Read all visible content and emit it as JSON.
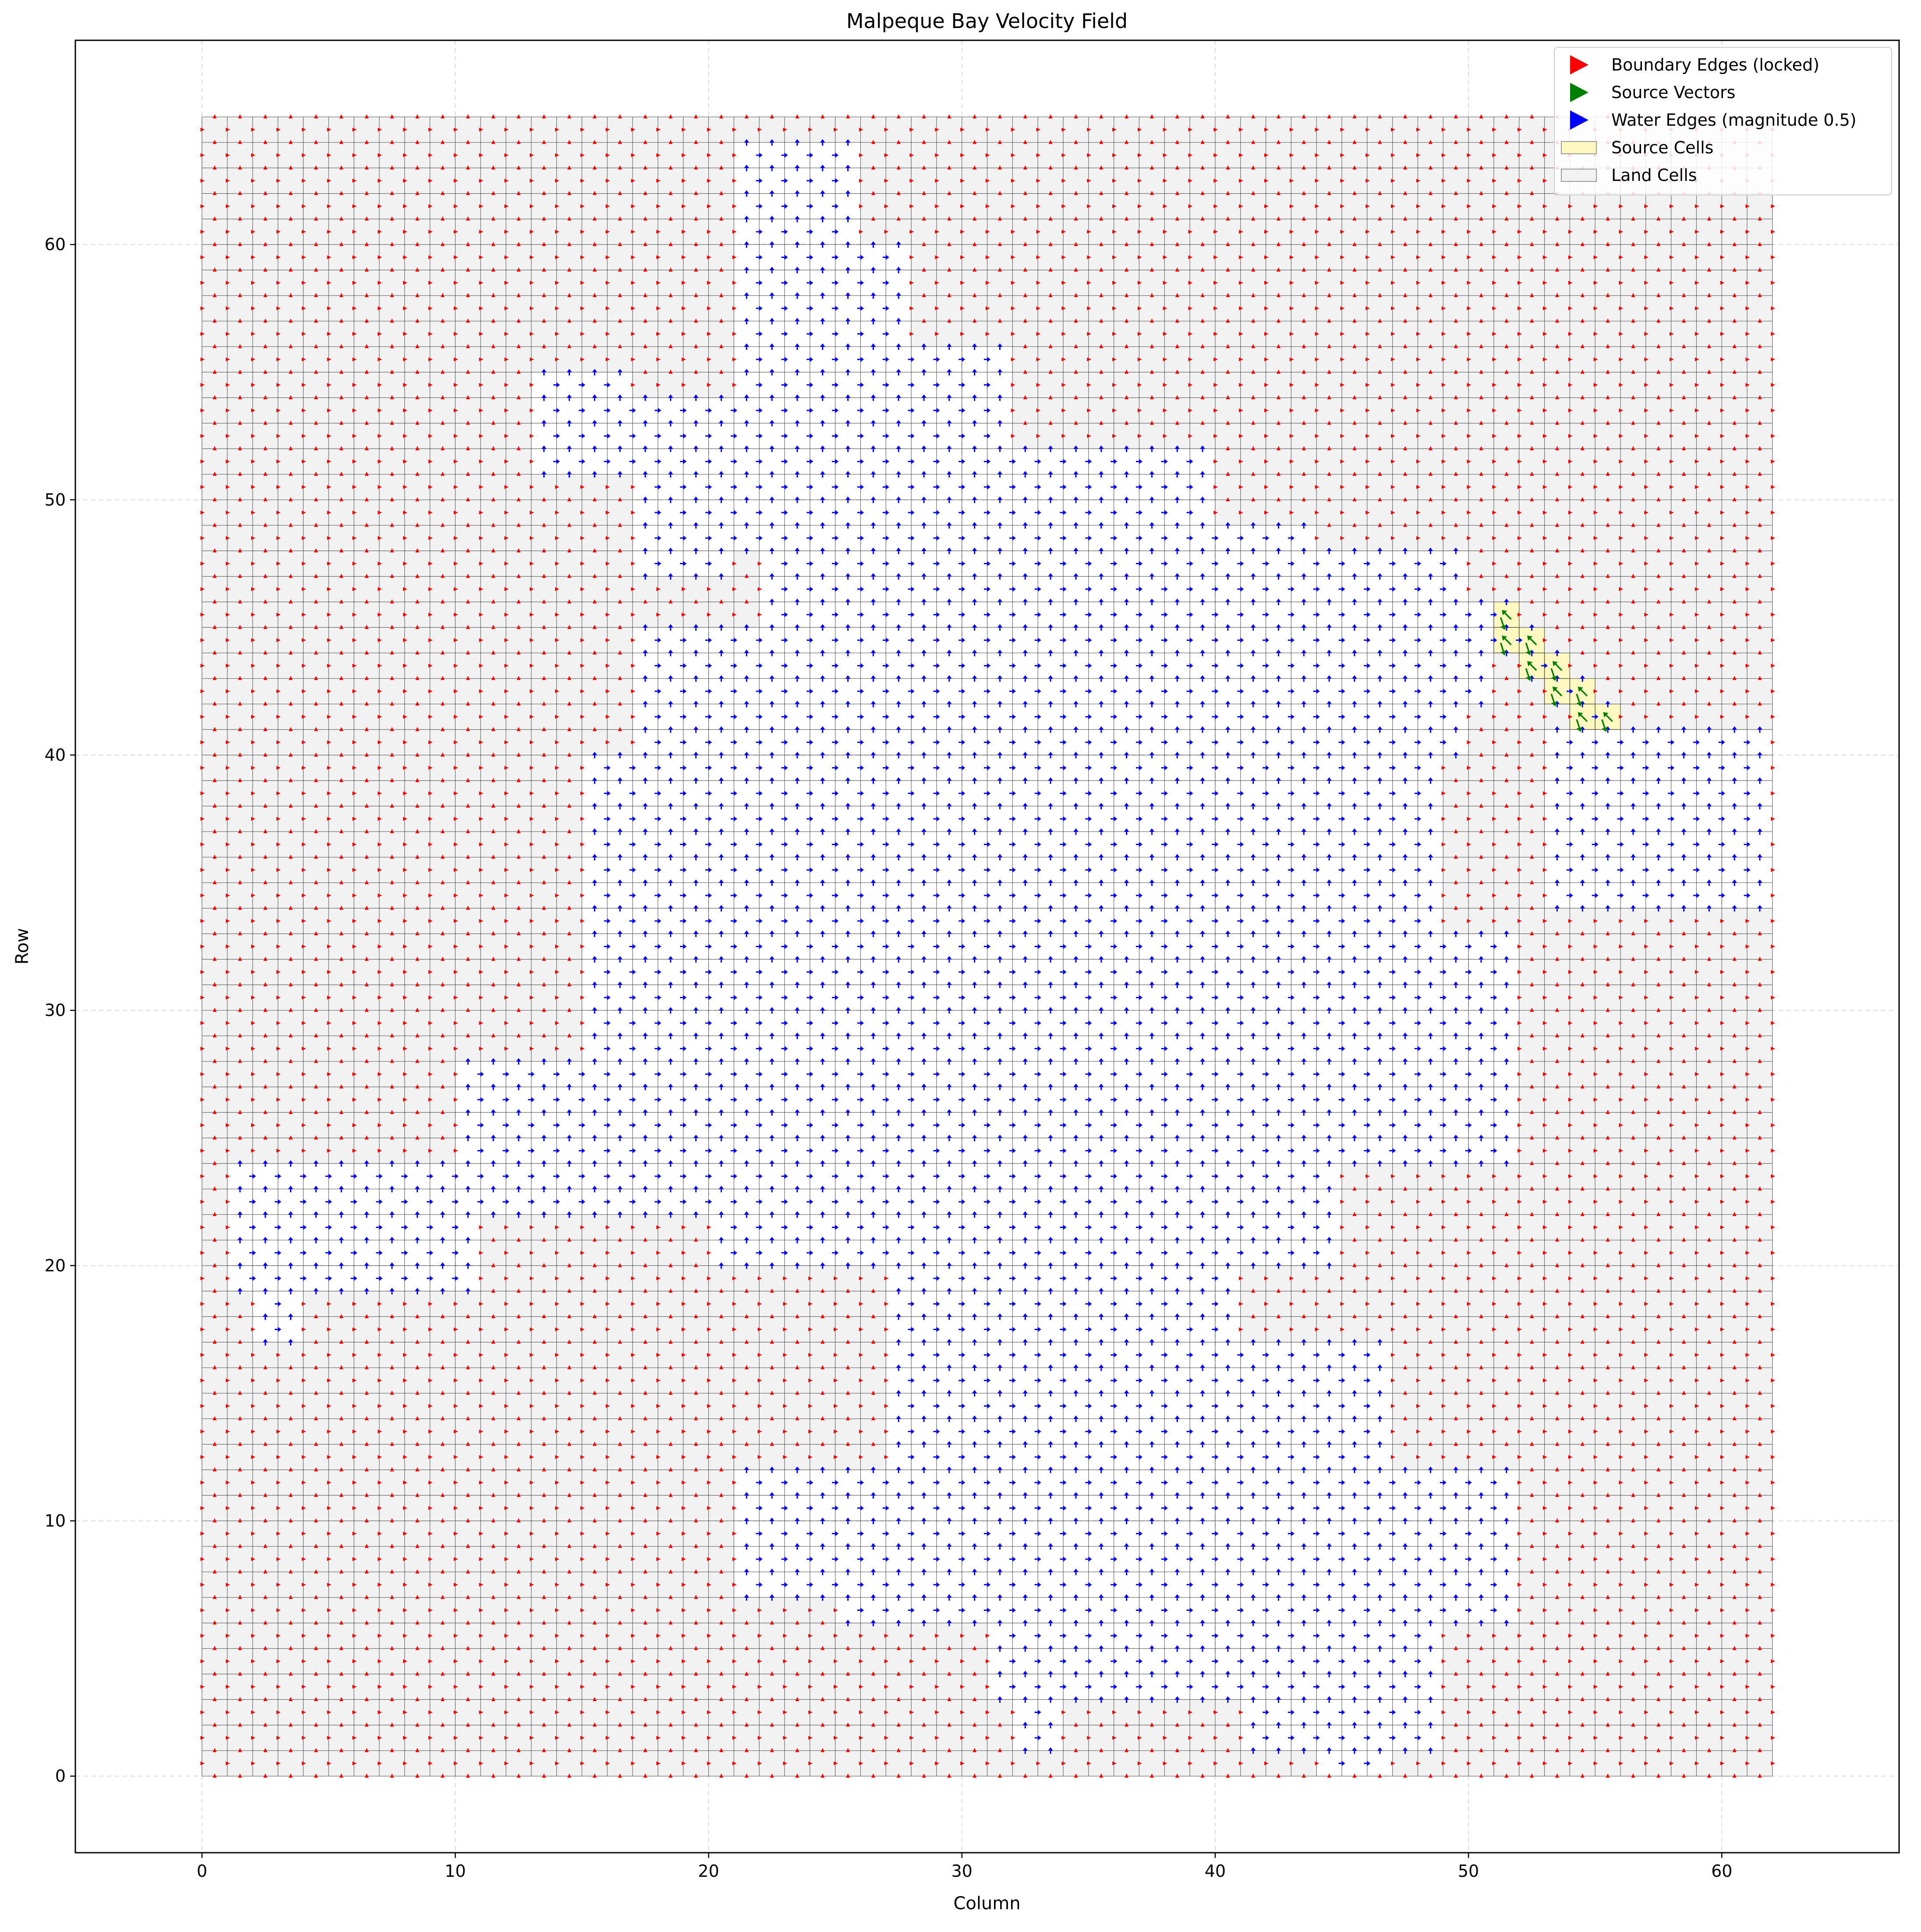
{
  "chart_data": {
    "type": "quiver",
    "title": "Malpeque Bay Velocity Field",
    "xlabel": "Column",
    "ylabel": "Row",
    "xlim": [
      -5,
      67
    ],
    "ylim": [
      -3,
      68
    ],
    "xticks": [
      0,
      10,
      20,
      30,
      40,
      50,
      60
    ],
    "yticks": [
      0,
      10,
      20,
      30,
      40,
      50,
      60
    ],
    "grid": true,
    "legend_position": "top-right",
    "grid_extent": {
      "cols": 62,
      "rows": 65
    },
    "legend": [
      {
        "label": "Boundary Edges (locked)",
        "kind": "arrow",
        "color": "#ff0000"
      },
      {
        "label": "Source Vectors",
        "kind": "arrow",
        "color": "#008000"
      },
      {
        "label": "Water Edges (magnitude 0.5)",
        "kind": "arrow",
        "color": "#0000ff"
      },
      {
        "label": "Source Cells",
        "kind": "patch",
        "color": "#fff8c0"
      },
      {
        "label": "Land Cells",
        "kind": "patch",
        "color": "#f2f2f2"
      }
    ],
    "water_regions": [
      {
        "x0": 21,
        "x1": 26,
        "y0": 48,
        "y1": 64
      },
      {
        "x0": 26,
        "x1": 28,
        "y0": 48,
        "y1": 60
      },
      {
        "x0": 28,
        "x1": 32,
        "y0": 48,
        "y1": 56
      },
      {
        "x0": 13,
        "x1": 17,
        "y0": 51,
        "y1": 55
      },
      {
        "x0": 17,
        "x1": 21,
        "y0": 47,
        "y1": 54
      },
      {
        "x0": 32,
        "x1": 40,
        "y0": 47,
        "y1": 52
      },
      {
        "x0": 40,
        "x1": 44,
        "y0": 46,
        "y1": 49
      },
      {
        "x0": 22,
        "x1": 50,
        "y0": 40,
        "y1": 48
      },
      {
        "x0": 17,
        "x1": 22,
        "y0": 40,
        "y1": 45
      },
      {
        "x0": 15,
        "x1": 49,
        "y0": 33,
        "y1": 40
      },
      {
        "x0": 15,
        "x1": 52,
        "y0": 24,
        "y1": 33
      },
      {
        "x0": 10,
        "x1": 20,
        "y0": 22,
        "y1": 28
      },
      {
        "x0": 20,
        "x1": 45,
        "y0": 20,
        "y1": 24
      },
      {
        "x0": 1,
        "x1": 11,
        "y0": 19,
        "y1": 24
      },
      {
        "x0": 2,
        "x1": 4,
        "y0": 17,
        "y1": 19
      },
      {
        "x0": 27,
        "x1": 41,
        "y0": 15,
        "y1": 20
      },
      {
        "x0": 27,
        "x1": 47,
        "y0": 12,
        "y1": 17
      },
      {
        "x0": 21,
        "x1": 52,
        "y0": 7,
        "y1": 12
      },
      {
        "x0": 25,
        "x1": 52,
        "y0": 6,
        "y1": 7
      },
      {
        "x0": 31,
        "x1": 49,
        "y0": 3,
        "y1": 6
      },
      {
        "x0": 32,
        "x1": 34,
        "y0": 1,
        "y1": 3
      },
      {
        "x0": 41,
        "x1": 49,
        "y0": 1,
        "y1": 3
      },
      {
        "x0": 44,
        "x1": 47,
        "y0": 0,
        "y1": 1
      },
      {
        "x0": 48,
        "x1": 51,
        "y0": 42,
        "y1": 46
      },
      {
        "x0": 53,
        "x1": 62,
        "y0": 34,
        "y1": 41
      }
    ],
    "source_cells": [
      {
        "col": 51,
        "row": 45
      },
      {
        "col": 51,
        "row": 44
      },
      {
        "col": 52,
        "row": 44
      },
      {
        "col": 52,
        "row": 43
      },
      {
        "col": 53,
        "row": 43
      },
      {
        "col": 53,
        "row": 42
      },
      {
        "col": 54,
        "row": 42
      },
      {
        "col": 54,
        "row": 41
      },
      {
        "col": 55,
        "row": 41
      }
    ]
  }
}
